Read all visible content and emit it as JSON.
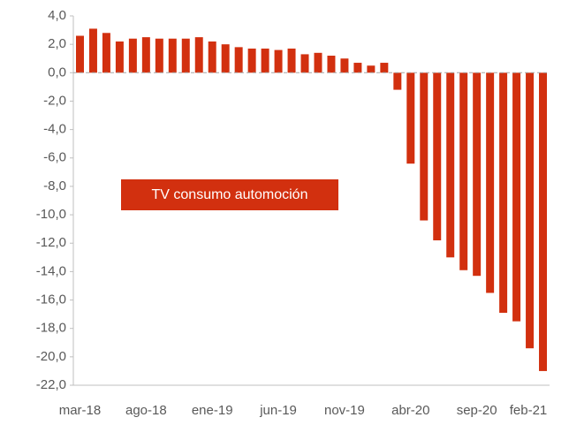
{
  "chart_data": {
    "type": "bar",
    "annotation": "TV consumo automoción",
    "categories": [
      "mar-18",
      null,
      null,
      null,
      null,
      "ago-18",
      null,
      null,
      null,
      null,
      "ene-19",
      null,
      null,
      null,
      null,
      "jun-19",
      null,
      null,
      null,
      null,
      "nov-19",
      null,
      null,
      null,
      null,
      "abr-20",
      null,
      null,
      null,
      null,
      "sep-20",
      null,
      null,
      null,
      null,
      "feb-21"
    ],
    "values": [
      2.6,
      3.1,
      2.8,
      2.2,
      2.4,
      2.5,
      2.4,
      2.4,
      2.4,
      2.5,
      2.2,
      2.0,
      1.8,
      1.7,
      1.7,
      1.6,
      1.7,
      1.3,
      1.4,
      1.2,
      1.0,
      0.7,
      0.5,
      0.7,
      -1.2,
      -6.4,
      -10.4,
      -11.8,
      -13.0,
      -13.9,
      -14.3,
      -15.5,
      -16.9,
      -17.5,
      -19.4,
      -21.0
    ],
    "color": "#d2300f",
    "ylim": [
      -22,
      4
    ],
    "yticks": [
      {
        "value": -22,
        "label": "-22,0"
      },
      {
        "value": -20,
        "label": "-20,0"
      },
      {
        "value": -18,
        "label": "-18,0"
      },
      {
        "value": -16,
        "label": "-16,0"
      },
      {
        "value": -14,
        "label": "-14,0"
      },
      {
        "value": -12,
        "label": "-12,0"
      },
      {
        "value": -10,
        "label": "-10,0"
      },
      {
        "value": -8,
        "label": "-8,0"
      },
      {
        "value": -6,
        "label": "-6,0"
      },
      {
        "value": -4,
        "label": "-4,0"
      },
      {
        "value": -2,
        "label": "-2,0"
      },
      {
        "value": 0,
        "label": "0,0"
      },
      {
        "value": 2,
        "label": "2,0"
      },
      {
        "value": 4,
        "label": "4,0"
      }
    ],
    "grid": false
  }
}
